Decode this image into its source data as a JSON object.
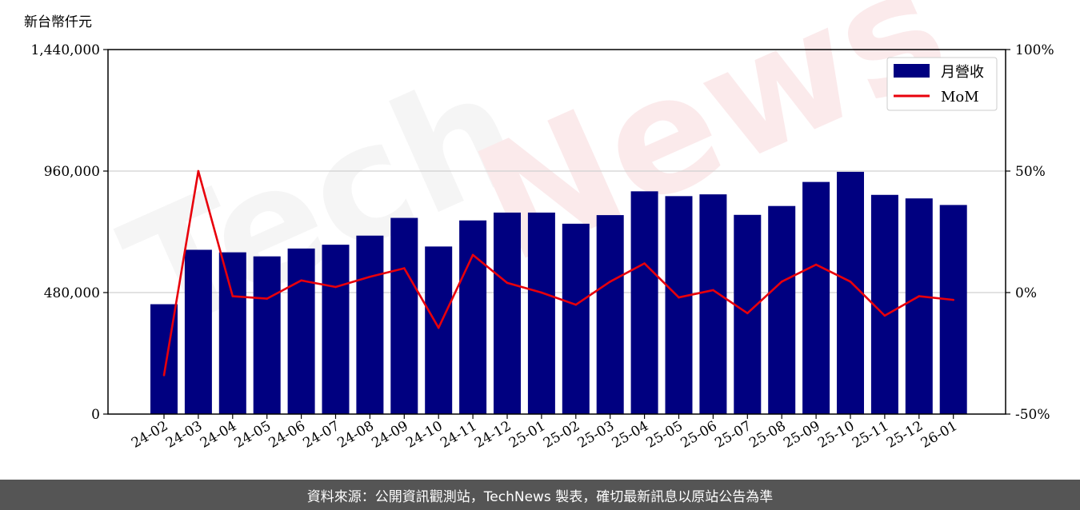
{
  "chart_data": {
    "type": "bar",
    "unit_label": "新台幣仟元",
    "categories": [
      "24-02",
      "24-03",
      "24-04",
      "24-05",
      "24-06",
      "24-07",
      "24-08",
      "24-09",
      "24-10",
      "24-11",
      "24-12",
      "25-01",
      "25-02",
      "25-03",
      "25-04",
      "25-05",
      "25-06",
      "25-07",
      "25-08",
      "25-09",
      "25-10",
      "25-11",
      "25-12",
      "26-01"
    ],
    "series": [
      {
        "name": "月營收",
        "type": "bar",
        "axis": "left",
        "color": "#000080",
        "values": [
          434000,
          649000,
          639000,
          623000,
          654000,
          669000,
          705000,
          775000,
          662000,
          765000,
          796000,
          796000,
          752000,
          786000,
          880000,
          861000,
          868000,
          787000,
          822000,
          917000,
          957000,
          866000,
          852000,
          826000
        ]
      },
      {
        "name": "MoM",
        "type": "line",
        "axis": "right",
        "color": "#e8000b",
        "values": [
          -34,
          50,
          -1.5,
          -2.5,
          5,
          2.3,
          6.5,
          10,
          -14.5,
          15.5,
          4,
          0,
          -5,
          4.5,
          12,
          -2,
          1,
          -8.5,
          4.5,
          11.5,
          4.5,
          -9.5,
          -1.5,
          -3
        ]
      }
    ],
    "y_left": {
      "min": 0,
      "max": 1440000,
      "ticks": [
        "0",
        "480,000",
        "960,000",
        "1,440,000"
      ],
      "tick_values": [
        0,
        480000,
        960000,
        1440000
      ]
    },
    "y_right": {
      "min": -50,
      "max": 100,
      "ticks": [
        "-50%",
        "0%",
        "50%",
        "100%"
      ],
      "tick_values": [
        -50,
        0,
        50,
        100
      ]
    },
    "grid": "horizontal",
    "legend_position": "top-right"
  },
  "watermark": "TechNews",
  "footer": "資料來源：公開資訊觀測站，TechNews 製表，確切最新訊息以原站公告為準",
  "colors": {
    "bar": "#000080",
    "line": "#e8000b",
    "footer_bg": "#555555"
  }
}
